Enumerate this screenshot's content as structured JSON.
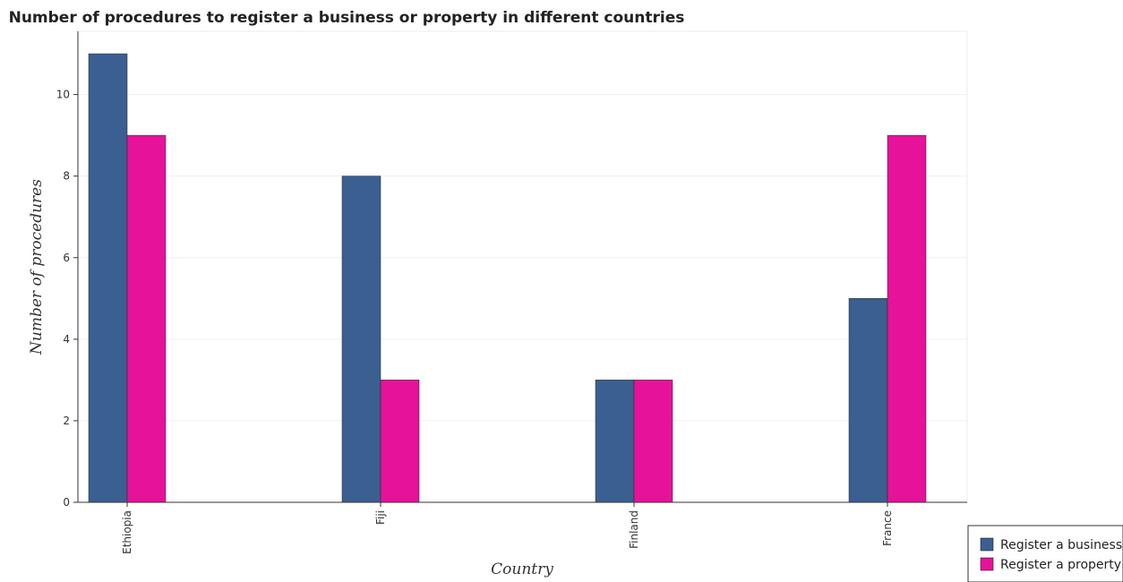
{
  "chart_data": {
    "type": "bar",
    "title": "Number of procedures to register a business or property in different countries",
    "xlabel": "Country",
    "ylabel": "Number of procedures",
    "categories": [
      "Ethiopia",
      "Fiji",
      "Finland",
      "France"
    ],
    "series": [
      {
        "name": "Register a business",
        "values": [
          11,
          8,
          3,
          5
        ],
        "color": "#3b5f91"
      },
      {
        "name": "Register a property",
        "values": [
          9,
          3,
          3,
          9
        ],
        "color": "#e6129a"
      }
    ],
    "ylim": [
      0,
      11.55
    ],
    "yticks": [
      0,
      2,
      4,
      6,
      8,
      10
    ],
    "grid": true,
    "legend_position": "bottom-right"
  }
}
